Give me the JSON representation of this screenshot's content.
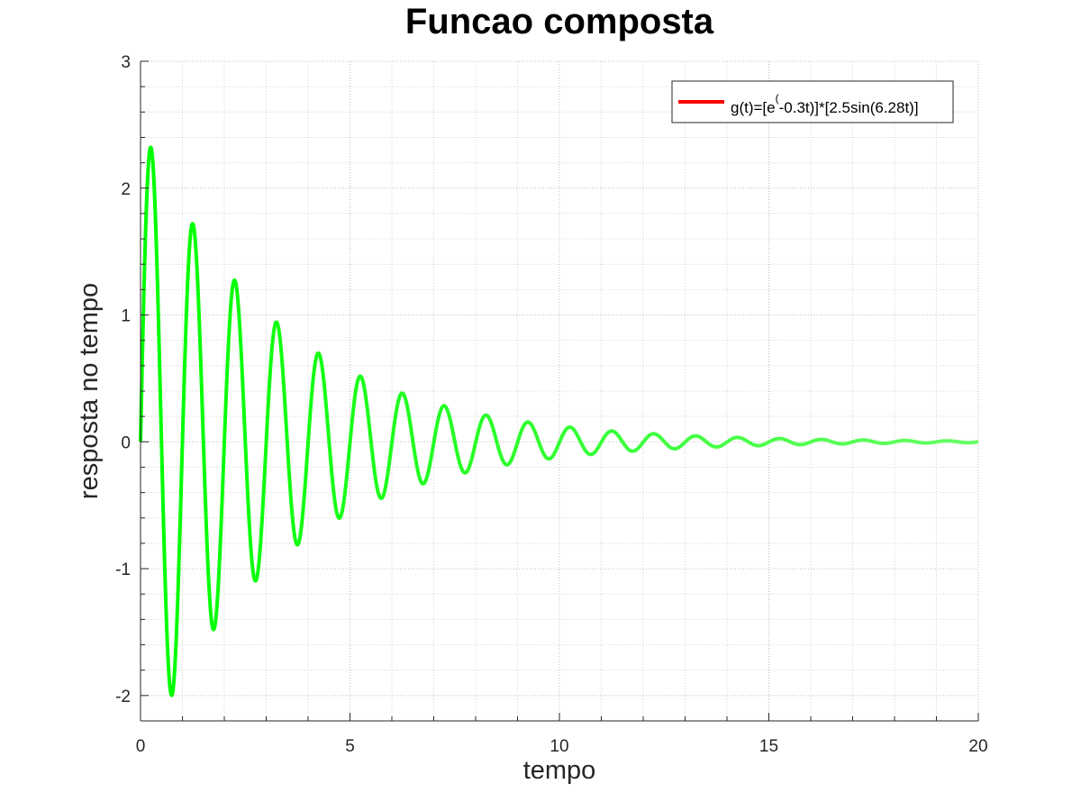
{
  "chart_data": {
    "type": "line",
    "title": "Funcao composta",
    "xlabel": "tempo",
    "ylabel": "resposta no tempo",
    "xlim": [
      0,
      20
    ],
    "ylim": [
      -2.2,
      3
    ],
    "xticks": [
      0,
      5,
      10,
      15,
      20
    ],
    "xtick_labels": [
      "0",
      "5",
      "10",
      "15",
      "20"
    ],
    "yticks": [
      -2,
      -1,
      0,
      1,
      2,
      3
    ],
    "ytick_labels": [
      "-2",
      "-1",
      "0",
      "1",
      "2",
      "3"
    ],
    "grid": true,
    "minor_grid": true,
    "legend_position": "top-right",
    "legend": {
      "color": "#ff0000",
      "label_before": "g(t)=[e",
      "label_sup": "(",
      "label_after": "-0.3t)]*[2.5sin(6.28t)]"
    },
    "series": [
      {
        "color_start": "#00ff00",
        "color_end": "#66ff66",
        "function": {
          "amplitude": 2.5,
          "decay": 0.3,
          "angular_frequency": 6.28
        },
        "x_range": [
          0,
          20
        ],
        "peaks": [
          {
            "x": 0.26,
            "y": 2.31
          },
          {
            "x": 0.76,
            "y": -1.99
          },
          {
            "x": 1.26,
            "y": 1.71
          },
          {
            "x": 1.76,
            "y": -1.47
          },
          {
            "x": 2.26,
            "y": 1.27
          },
          {
            "x": 2.76,
            "y": -1.09
          },
          {
            "x": 3.26,
            "y": 0.94
          },
          {
            "x": 3.76,
            "y": -0.81
          },
          {
            "x": 4.26,
            "y": 0.7
          },
          {
            "x": 4.76,
            "y": -0.6
          },
          {
            "x": 5.26,
            "y": 0.52
          },
          {
            "x": 5.76,
            "y": -0.44
          },
          {
            "x": 6.26,
            "y": 0.38
          },
          {
            "x": 6.76,
            "y": -0.33
          },
          {
            "x": 7.26,
            "y": 0.28
          },
          {
            "x": 7.76,
            "y": -0.24
          },
          {
            "x": 8.26,
            "y": 0.21
          },
          {
            "x": 8.76,
            "y": -0.18
          },
          {
            "x": 9.26,
            "y": 0.15
          },
          {
            "x": 9.76,
            "y": -0.13
          },
          {
            "x": 10.26,
            "y": 0.11
          },
          {
            "x": 10.76,
            "y": -0.1
          },
          {
            "x": 11.26,
            "y": 0.08
          },
          {
            "x": 11.76,
            "y": -0.07
          },
          {
            "x": 12.26,
            "y": 0.06
          },
          {
            "x": 12.76,
            "y": -0.05
          },
          {
            "x": 13.26,
            "y": 0.05
          },
          {
            "x": 13.76,
            "y": -0.04
          },
          {
            "x": 14.26,
            "y": 0.03
          },
          {
            "x": 14.76,
            "y": -0.03
          },
          {
            "x": 15.26,
            "y": 0.03
          },
          {
            "x": 15.76,
            "y": -0.02
          },
          {
            "x": 16.26,
            "y": 0.02
          },
          {
            "x": 16.76,
            "y": -0.02
          },
          {
            "x": 17.26,
            "y": 0.01
          },
          {
            "x": 17.76,
            "y": -0.01
          },
          {
            "x": 18.26,
            "y": 0.01
          },
          {
            "x": 18.76,
            "y": -0.01
          },
          {
            "x": 19.26,
            "y": 0.01
          },
          {
            "x": 19.76,
            "y": -0.01
          }
        ]
      }
    ]
  }
}
